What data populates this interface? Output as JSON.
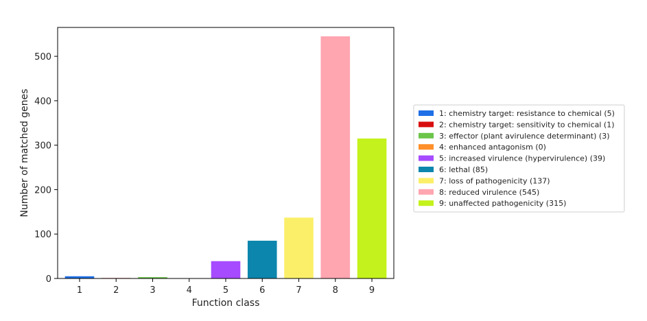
{
  "chart_data": {
    "type": "bar",
    "xlabel": "Function class",
    "ylabel": "Number of matched genes",
    "ylim": [
      0,
      565
    ],
    "yticks": [
      0,
      100,
      200,
      300,
      400,
      500
    ],
    "grid": false,
    "legend_position": "right",
    "categories": [
      "1",
      "2",
      "3",
      "4",
      "5",
      "6",
      "7",
      "8",
      "9"
    ],
    "values": [
      5,
      1,
      3,
      0,
      39,
      85,
      137,
      545,
      315
    ],
    "colors": [
      "#1f6fe6",
      "#d80f0f",
      "#6cc54a",
      "#ff8f2a",
      "#a64bff",
      "#0c86ad",
      "#fbef69",
      "#ffa6b1",
      "#c3f21c"
    ],
    "legend": [
      "1: chemistry target: resistance to chemical (5)",
      "2: chemistry target: sensitivity to chemical (1)",
      "3: effector (plant avirulence determinant) (3)",
      "4: enhanced antagonism (0)",
      "5: increased virulence (hypervirulence) (39)",
      "6: lethal (85)",
      "7: loss of pathogenicity (137)",
      "8: reduced virulence (545)",
      "9: unaffected pathogenicity (315)"
    ]
  }
}
